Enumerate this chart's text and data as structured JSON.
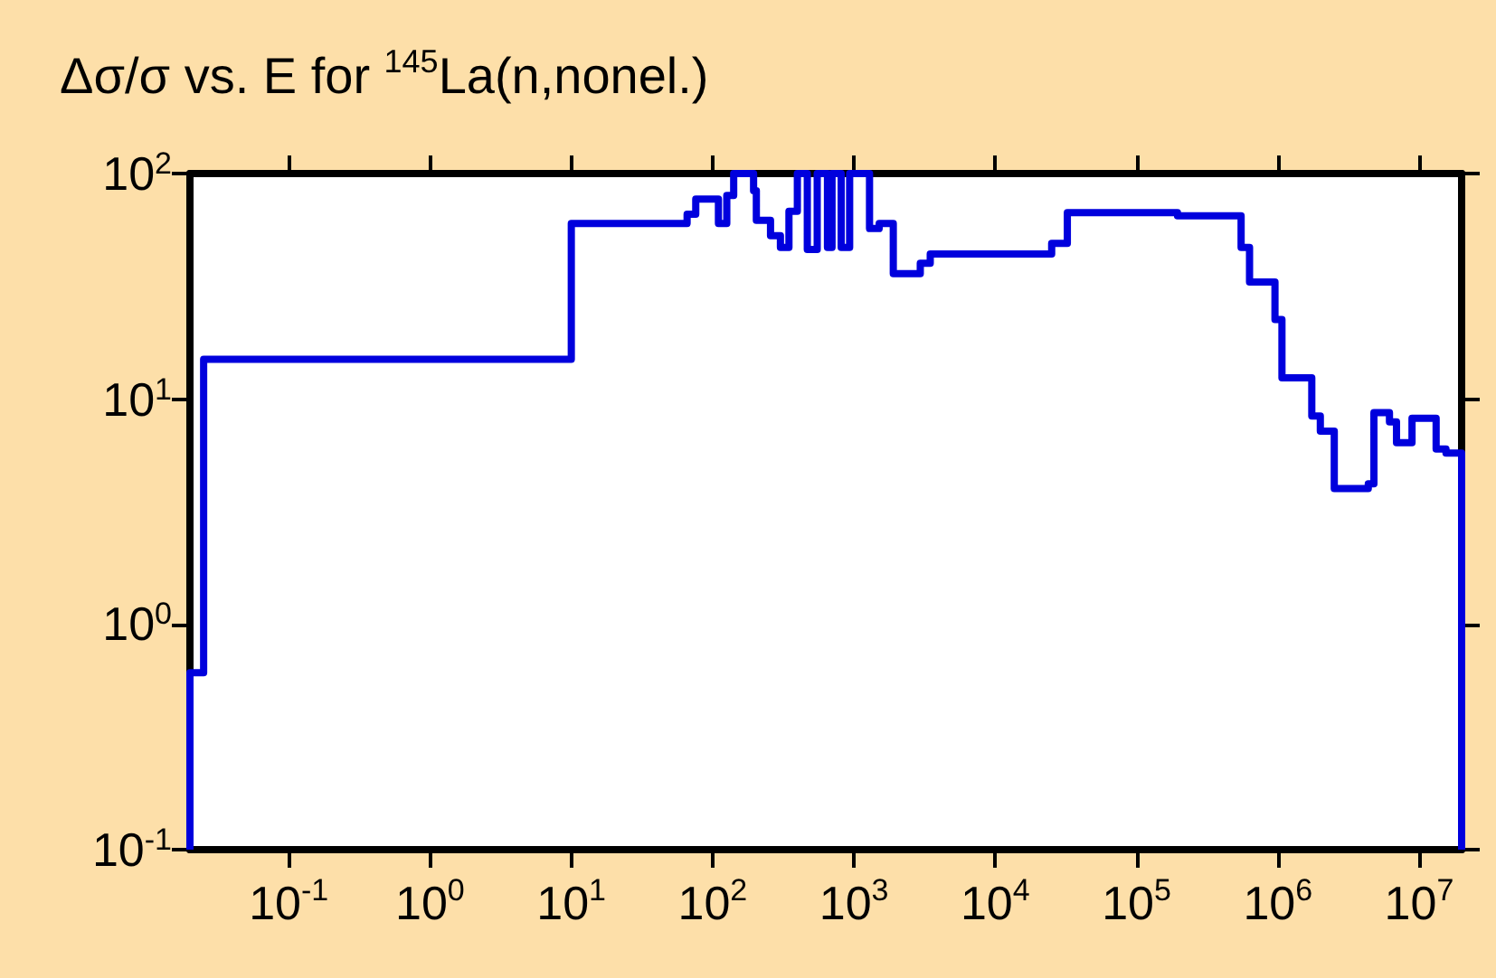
{
  "chart_data": {
    "type": "step",
    "title": "Δσ/σ vs. E for $^{145}$La(n,nonel.)",
    "log": "xy",
    "grid": false,
    "marker": "none",
    "line_style": "solid",
    "xlim": [
      0.02,
      20000000
    ],
    "xticks": [
      {
        "value": 0.1,
        "label": "10$^{-1}$"
      },
      {
        "value": 1,
        "label": "10$^{0}$"
      },
      {
        "value": 10,
        "label": "10$^{1}$"
      },
      {
        "value": 100,
        "label": "10$^{2}$"
      },
      {
        "value": 1000,
        "label": "10$^{3}$"
      },
      {
        "value": 10000,
        "label": "10$^{4}$"
      },
      {
        "value": 100000,
        "label": "10$^{5}$"
      },
      {
        "value": 1000000,
        "label": "10$^{6}$"
      },
      {
        "value": 10000000,
        "label": "10$^{7}$"
      }
    ],
    "ylim": [
      0.1,
      100
    ],
    "yticks": [
      {
        "value": 0.1,
        "label": "10$^{-1}$"
      },
      {
        "value": 1,
        "label": "10$^{0}$"
      },
      {
        "value": 10,
        "label": "10$^{1}$"
      },
      {
        "value": 100,
        "label": "10$^{2}$"
      }
    ],
    "series": [
      {
        "color": "#0000dd",
        "x": [
          0.02,
          0.02,
          0.025,
          10,
          66,
          76,
          110,
          126,
          141,
          195,
          204,
          257,
          302,
          347,
          398,
          468,
          550,
          650,
          700,
          813,
          933,
          1290,
          1510,
          1900,
          2950,
          3470,
          25100,
          32400,
          195000,
          550000,
          631000,
          955000,
          1070000,
          1740000,
          2000000,
          2510000,
          4370000,
          4790000,
          6170000,
          6920000,
          8910000,
          13200000,
          15500000,
          20000000,
          20000000
        ],
        "values": [
          0.1,
          0.61,
          15,
          60,
          66,
          77,
          60,
          80,
          100,
          84,
          62,
          53,
          47,
          68,
          100,
          46,
          100,
          47,
          100,
          47,
          100,
          57,
          60,
          36,
          40,
          44,
          49,
          67,
          65,
          47,
          33,
          22.5,
          12.4,
          8.4,
          7.2,
          4.0,
          4.2,
          8.7,
          7.9,
          6.4,
          8.2,
          6.0,
          5.75,
          5.75,
          0.1
        ]
      }
    ]
  }
}
